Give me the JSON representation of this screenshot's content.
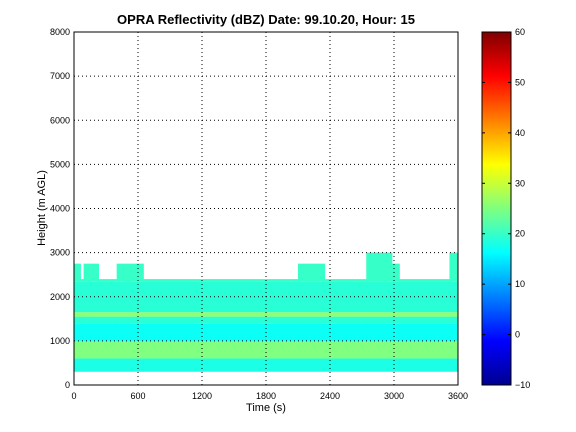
{
  "chart_data": [
    {
      "type": "heatmap",
      "title": "OPRA Reflectivity (dBZ)  Date: 99.10.20, Hour: 15",
      "xlabel": "Time (s)",
      "ylabel": "Height (m AGL)",
      "xlim": [
        0,
        3600
      ],
      "ylim": [
        0,
        8000
      ],
      "x_ticks": [
        0,
        600,
        1200,
        1800,
        2400,
        3000,
        3600
      ],
      "y_ticks": [
        0,
        1000,
        2000,
        3000,
        4000,
        5000,
        6000,
        7000,
        8000
      ],
      "grid": true,
      "colormap": "jet",
      "echo_base_m": 300,
      "echo_top_m": [
        [
          0,
          2750
        ],
        [
          60,
          2400
        ],
        [
          90,
          2750
        ],
        [
          230,
          2400
        ],
        [
          400,
          2750
        ],
        [
          650,
          2400
        ],
        [
          2100,
          2750
        ],
        [
          2350,
          2400
        ],
        [
          2740,
          3000
        ],
        [
          2980,
          2750
        ],
        [
          3050,
          2400
        ],
        [
          3520,
          3000
        ],
        [
          3600,
          3000
        ]
      ],
      "layers": [
        {
          "height_m": [
            300,
            600
          ],
          "dbz": 18
        },
        {
          "height_m": [
            600,
            1000
          ],
          "dbz": 25
        },
        {
          "height_m": [
            1000,
            1400
          ],
          "dbz": 17
        },
        {
          "height_m": [
            1400,
            1550
          ],
          "dbz": 19
        },
        {
          "height_m": [
            1550,
            1650
          ],
          "dbz": 26
        },
        {
          "height_m": [
            1650,
            2350
          ],
          "dbz": 19
        },
        {
          "height_m": [
            2350,
            3000
          ],
          "dbz": 20
        }
      ]
    },
    {
      "type": "colorbar",
      "clim": [
        -10,
        60
      ],
      "ticks": [
        -10,
        0,
        10,
        20,
        30,
        40,
        50,
        60
      ]
    }
  ]
}
